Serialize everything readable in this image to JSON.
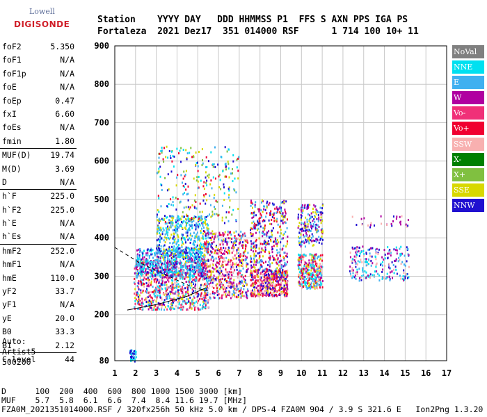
{
  "logo": {
    "top": "Lowell",
    "bottom": "DIGISONDE"
  },
  "header": {
    "labels": "Station    YYYY DAY   DDD HHMMSS P1  FFS S AXN PPS IGA PS",
    "values": "Fortaleza  2021 Dez17  351 014000 RSF      1 714 100 10+ 11"
  },
  "params": [
    {
      "label": "foF2",
      "value": "5.350"
    },
    {
      "label": "foF1",
      "value": "N/A"
    },
    {
      "label": "foF1p",
      "value": "N/A"
    },
    {
      "label": "foE",
      "value": "N/A"
    },
    {
      "label": "foEp",
      "value": "0.47"
    },
    {
      "label": "fxI",
      "value": "6.60"
    },
    {
      "label": "foEs",
      "value": "N/A"
    },
    {
      "label": "fmin",
      "value": "1.80"
    },
    {
      "label": "MUF(D)",
      "value": "19.74"
    },
    {
      "label": "M(D)",
      "value": "3.69"
    },
    {
      "label": "D",
      "value": "N/A"
    },
    {
      "label": "h`F",
      "value": "225.0"
    },
    {
      "label": "h`F2",
      "value": "225.0"
    },
    {
      "label": "h`E",
      "value": "N/A"
    },
    {
      "label": "h`Es",
      "value": "N/A"
    },
    {
      "label": "hmF2",
      "value": "252.0"
    },
    {
      "label": "hmF1",
      "value": "N/A"
    },
    {
      "label": "hmE",
      "value": "110.0"
    },
    {
      "label": "yF2",
      "value": "33.7"
    },
    {
      "label": "yF1",
      "value": "N/A"
    },
    {
      "label": "yE",
      "value": "20.0"
    },
    {
      "label": "B0",
      "value": "33.3"
    },
    {
      "label": "B1",
      "value": "2.12"
    },
    {
      "label": "C-level",
      "value": "44"
    }
  ],
  "auto": {
    "line1": "Auto:",
    "line2": "Artist5",
    "line3": "500200"
  },
  "legend": [
    {
      "label": "NoVal",
      "color": "#808080"
    },
    {
      "label": "NNE",
      "color": "#00e0f0"
    },
    {
      "label": "E",
      "color": "#40b0f0"
    },
    {
      "label": "W",
      "color": "#b000a0"
    },
    {
      "label": "Vo-",
      "color": "#f03078"
    },
    {
      "label": "Vo+",
      "color": "#f00030"
    },
    {
      "label": "SSW",
      "color": "#f8b0b0"
    },
    {
      "label": "X-",
      "color": "#008000"
    },
    {
      "label": "X+",
      "color": "#80c040"
    },
    {
      "label": "SSE",
      "color": "#d8d800"
    },
    {
      "label": "NNW",
      "color": "#2010d0"
    }
  ],
  "footer": {
    "line1": "D      100  200  400  600  800 1000 1500 3000 [km]",
    "line2": "MUF    5.7  5.8  6.1  6.6  7.4  8.4 11.6 19.7 [MHz]",
    "line3": "FZA0M_2021351014000.RSF / 320fx256h 50 kHz 5.0 km / DPS-4 FZA0M 904 / 3.9 S 321.6 E   Ion2Png 1.3.20"
  },
  "chart_data": {
    "type": "scatter",
    "xlim": [
      1,
      17
    ],
    "ylim": [
      80,
      900
    ],
    "x_ticks": [
      1,
      2,
      3,
      4,
      5,
      6,
      7,
      8,
      9,
      10,
      11,
      12,
      13,
      14,
      15,
      16,
      17
    ],
    "y_ticks": [
      80,
      200,
      300,
      400,
      500,
      600,
      700,
      800,
      900
    ],
    "grid": true,
    "legend_position": "right",
    "clusters": [
      {
        "x": [
          1.9,
          5.5
        ],
        "y": [
          215,
          345
        ],
        "n": 900,
        "colors": [
          6,
          5,
          4,
          3,
          9,
          10,
          1,
          2
        ]
      },
      {
        "x": [
          2.0,
          5.3
        ],
        "y": [
          300,
          375
        ],
        "n": 500,
        "colors": [
          2,
          1,
          2,
          3,
          10
        ]
      },
      {
        "x": [
          3.0,
          5.5
        ],
        "y": [
          350,
          460
        ],
        "n": 450,
        "colors": [
          2,
          1,
          2,
          10,
          9
        ]
      },
      {
        "x": [
          3.0,
          7.0
        ],
        "y": [
          440,
          640
        ],
        "n": 260,
        "colors": [
          9,
          2,
          1,
          8,
          10,
          5
        ]
      },
      {
        "x": [
          5.3,
          7.4
        ],
        "y": [
          245,
          420
        ],
        "n": 600,
        "colors": [
          5,
          4,
          3,
          9,
          2,
          10,
          6
        ]
      },
      {
        "x": [
          7.5,
          9.3
        ],
        "y": [
          250,
          320
        ],
        "n": 450,
        "colors": [
          5,
          4,
          3,
          9,
          6,
          10
        ]
      },
      {
        "x": [
          7.5,
          9.3
        ],
        "y": [
          300,
          500
        ],
        "n": 400,
        "colors": [
          3,
          10,
          5,
          9,
          2
        ]
      },
      {
        "x": [
          9.8,
          11.0
        ],
        "y": [
          270,
          360
        ],
        "n": 320,
        "colors": [
          6,
          5,
          2,
          9,
          1,
          3
        ]
      },
      {
        "x": [
          9.8,
          11.0
        ],
        "y": [
          380,
          490
        ],
        "n": 200,
        "colors": [
          9,
          2,
          10,
          3
        ]
      },
      {
        "x": [
          12.3,
          15.2
        ],
        "y": [
          290,
          380
        ],
        "n": 230,
        "colors": [
          10,
          2,
          1,
          3,
          6
        ]
      },
      {
        "x": [
          12.3,
          15.2
        ],
        "y": [
          430,
          460
        ],
        "n": 30,
        "colors": [
          3,
          6,
          10
        ]
      },
      {
        "x": [
          1.7,
          2.0
        ],
        "y": [
          80,
          110
        ],
        "n": 40,
        "colors": [
          2,
          1,
          10
        ]
      }
    ],
    "dashed_trace": [
      [
        1.0,
        375
      ],
      [
        2.2,
        335
      ],
      [
        3.6,
        300
      ],
      [
        4.8,
        270
      ],
      [
        5.5,
        262
      ]
    ],
    "solid_trace": [
      [
        1.6,
        212
      ],
      [
        3.0,
        226
      ],
      [
        4.5,
        248
      ],
      [
        5.4,
        270
      ]
    ]
  }
}
